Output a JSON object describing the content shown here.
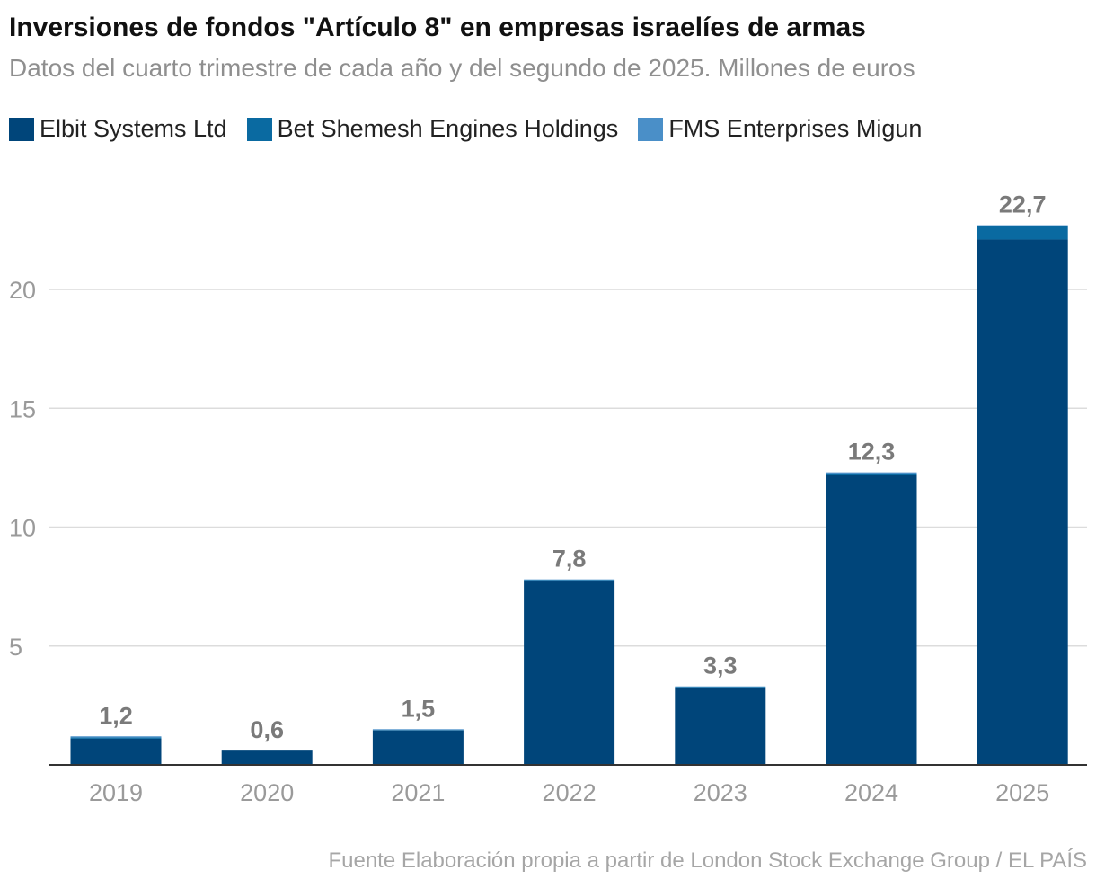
{
  "chart_data": {
    "type": "bar",
    "stacked": true,
    "title": "Inversiones de fondos \"Artículo 8\" en empresas israelíes de armas",
    "subtitle": "Datos del cuarto trimestre de cada año y del segundo de 2025. Millones de euros",
    "categories": [
      "2019",
      "2020",
      "2021",
      "2022",
      "2023",
      "2024",
      "2025"
    ],
    "series": [
      {
        "name": "Elbit Systems Ltd",
        "color": "#00457a",
        "values": [
          1.1,
          0.6,
          1.45,
          7.75,
          3.25,
          12.2,
          22.1
        ]
      },
      {
        "name": "Bet Shemesh Engines Holdings",
        "color": "#0a6aa1",
        "values": [
          0.05,
          0,
          0.02,
          0.03,
          0.03,
          0.05,
          0.55
        ]
      },
      {
        "name": "FMS Enterprises Migun",
        "color": "#4a8fc8",
        "values": [
          0.05,
          0,
          0.03,
          0.02,
          0.02,
          0.05,
          0.05
        ]
      }
    ],
    "totals": [
      1.2,
      0.6,
      1.5,
      7.8,
      3.3,
      12.3,
      22.7
    ],
    "total_labels": [
      "1,2",
      "0,6",
      "1,5",
      "7,8",
      "3,3",
      "12,3",
      "22,7"
    ],
    "yticks": [
      5,
      10,
      15,
      20
    ],
    "ylim": [
      0,
      24
    ],
    "xlabel": "",
    "ylabel": ""
  },
  "legend": [
    {
      "label": "Elbit Systems Ltd",
      "color": "#00457a"
    },
    {
      "label": "Bet Shemesh Engines Holdings",
      "color": "#0a6aa1"
    },
    {
      "label": "FMS Enterprises Migun",
      "color": "#4a8fc8"
    }
  ],
  "source": "Fuente Elaboración propia a partir de London Stock Exchange Group / EL PAÍS"
}
